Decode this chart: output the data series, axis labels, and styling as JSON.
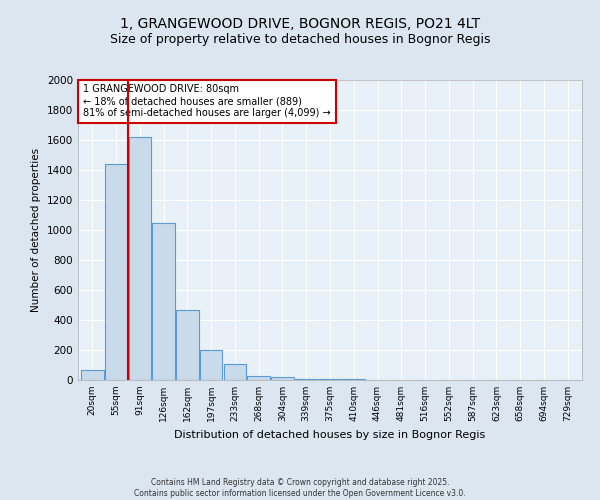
{
  "title_line1": "1, GRANGEWOOD DRIVE, BOGNOR REGIS, PO21 4LT",
  "title_line2": "Size of property relative to detached houses in Bognor Regis",
  "xlabel": "Distribution of detached houses by size in Bognor Regis",
  "ylabel": "Number of detached properties",
  "footnote1": "Contains HM Land Registry data © Crown copyright and database right 2025.",
  "footnote2": "Contains public sector information licensed under the Open Government Licence v3.0.",
  "bin_labels": [
    "20sqm",
    "55sqm",
    "91sqm",
    "126sqm",
    "162sqm",
    "197sqm",
    "233sqm",
    "268sqm",
    "304sqm",
    "339sqm",
    "375sqm",
    "410sqm",
    "446sqm",
    "481sqm",
    "516sqm",
    "552sqm",
    "587sqm",
    "623sqm",
    "658sqm",
    "694sqm",
    "729sqm"
  ],
  "bar_values": [
    70,
    1440,
    1620,
    1050,
    470,
    200,
    110,
    30,
    20,
    10,
    5,
    5,
    0,
    0,
    0,
    0,
    0,
    0,
    0,
    0,
    0
  ],
  "bar_color": "#c9daea",
  "bar_edge_color": "#5b9bd5",
  "property_label": "1 GRANGEWOOD DRIVE: 80sqm",
  "annotation_line1": "← 18% of detached houses are smaller (889)",
  "annotation_line2": "81% of semi-detached houses are larger (4,099) →",
  "vline_color": "#cc0000",
  "vline_position": 1.5,
  "annotation_box_color": "#cc0000",
  "ylim": [
    0,
    2000
  ],
  "yticks": [
    0,
    200,
    400,
    600,
    800,
    1000,
    1200,
    1400,
    1600,
    1800,
    2000
  ],
  "bg_color": "#dce6f0",
  "plot_bg_color": "#e8f0f8",
  "grid_color": "#ffffff",
  "title_fontsize": 10,
  "subtitle_fontsize": 9
}
